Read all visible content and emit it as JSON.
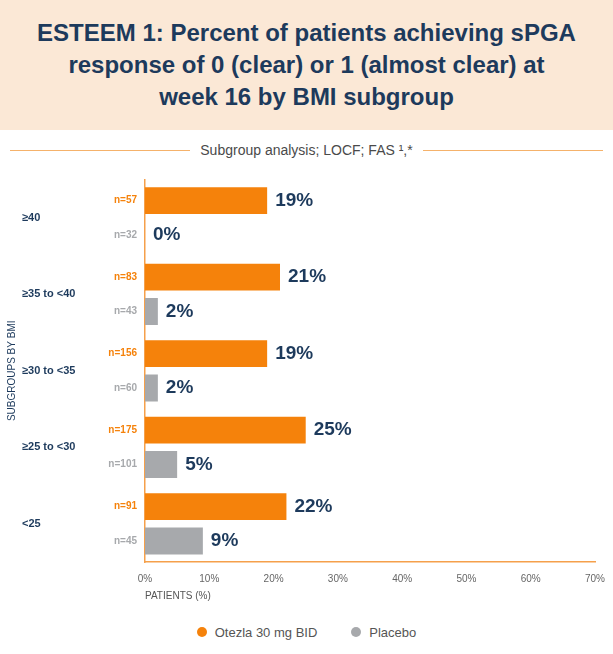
{
  "chart_data": {
    "type": "bar",
    "orientation": "horizontal",
    "title": "ESTEEM 1: Percent of patients achieving sPGA response of 0 (clear) or 1 (almost clear) at week 16 by BMI subgroup",
    "subtitle": "Subgroup analysis; LOCF; FAS ¹,*",
    "x_label": "PATIENTS (%)",
    "y_label": "SUBGROUPS BY BMI",
    "categories": [
      "≥40",
      "≥35 to <40",
      "≥30 to <35",
      "≥25 to <30",
      "<25"
    ],
    "series": [
      {
        "name": "Otezla 30 mg BID",
        "color": "#f5820b",
        "values": [
          19,
          21,
          19,
          25,
          22
        ],
        "value_labels": [
          "19%",
          "21%",
          "19%",
          "25%",
          "22%"
        ],
        "sample_sizes": [
          57,
          83,
          156,
          175,
          91
        ],
        "sample_size_labels": [
          "n=57",
          "n=83",
          "n=156",
          "n=175",
          "n=91"
        ]
      },
      {
        "name": "Placebo",
        "color": "#a7a9ac",
        "values": [
          0,
          2,
          2,
          5,
          9
        ],
        "value_labels": [
          "0%",
          "2%",
          "2%",
          "5%",
          "9%"
        ],
        "sample_sizes": [
          32,
          43,
          60,
          101,
          45
        ],
        "sample_size_labels": [
          "n=32",
          "n=43",
          "n=60",
          "n=101",
          "n=45"
        ]
      }
    ],
    "xlim": [
      0,
      70
    ],
    "xticks": [
      {
        "value": 0,
        "label": "0%"
      },
      {
        "value": 10,
        "label": "10%"
      },
      {
        "value": 20,
        "label": "20%"
      },
      {
        "value": 30,
        "label": "30%"
      },
      {
        "value": 40,
        "label": "40%"
      },
      {
        "value": 50,
        "label": "50%"
      },
      {
        "value": 60,
        "label": "60%"
      },
      {
        "value": 70,
        "label": "70%"
      }
    ],
    "grid": false,
    "legend": "bottom",
    "data_labels": true
  }
}
